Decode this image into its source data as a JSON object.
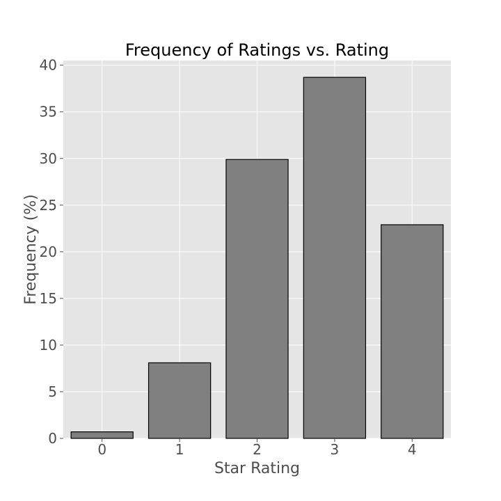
{
  "chart_data": {
    "type": "bar",
    "title": "Frequency of Ratings vs. Rating",
    "xlabel": "Star Rating",
    "ylabel": "Frequency (%)",
    "categories": [
      "0",
      "1",
      "2",
      "3",
      "4"
    ],
    "values": [
      0.7,
      8.1,
      29.9,
      38.7,
      22.9
    ],
    "ylim": [
      0,
      40.5
    ],
    "yticks": [
      "0",
      "5",
      "10",
      "15",
      "20",
      "25",
      "30",
      "35",
      "40"
    ],
    "grid": true,
    "legend": "none",
    "colors": {
      "bar_fill": "#808080",
      "bar_edge": "#000000",
      "plot_background": "#e5e5e5",
      "grid": "#ffffff"
    }
  }
}
